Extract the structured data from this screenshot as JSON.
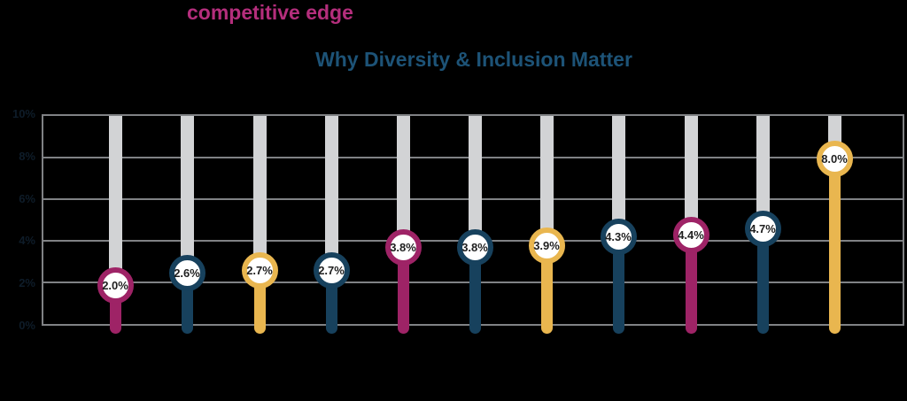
{
  "page": {
    "background": "#000000"
  },
  "header": {
    "headline": {
      "prefix": "",
      "highlight": "competitive edge",
      "suffix": ""
    },
    "title": "Why Diversity & Inclusion Matter",
    "caption": ""
  },
  "colors": {
    "magenta": "#9e2366",
    "navy": "#17415d",
    "yellow": "#e9b64f",
    "highlight_text": "#b42e7c",
    "title_text": "#1d5377",
    "grid": "#808285",
    "track": "#d2d3d5",
    "badge_text": "#1f1f1f",
    "badge_fill": "#ffffff",
    "dark_text": "#0e1c29"
  },
  "chart_data": {
    "type": "bar",
    "variant": "lollipop",
    "title": "Why Diversity & Inclusion Matter",
    "categories": [
      "",
      "",
      "",
      "",
      "",
      "",
      "",
      "",
      "",
      "",
      ""
    ],
    "values": [
      2.0,
      2.6,
      2.7,
      2.7,
      3.8,
      3.8,
      3.9,
      4.3,
      4.4,
      4.7,
      8.0
    ],
    "value_labels": [
      "2.0%",
      "2.6%",
      "2.7%",
      "2.7%",
      "3.8%",
      "3.8%",
      "3.9%",
      "4.3%",
      "4.4%",
      "4.7%",
      "8.0%"
    ],
    "point_colors": [
      "magenta",
      "navy",
      "yellow",
      "navy",
      "magenta",
      "navy",
      "yellow",
      "navy",
      "magenta",
      "navy",
      "yellow"
    ],
    "xlabel": "",
    "ylabel": "",
    "ylim": [
      0,
      10
    ],
    "y_ticks_top_to_bottom": [
      "10%",
      "8%",
      "6%",
      "4%",
      "2%",
      "0%"
    ],
    "grid": true,
    "legend": false
  }
}
